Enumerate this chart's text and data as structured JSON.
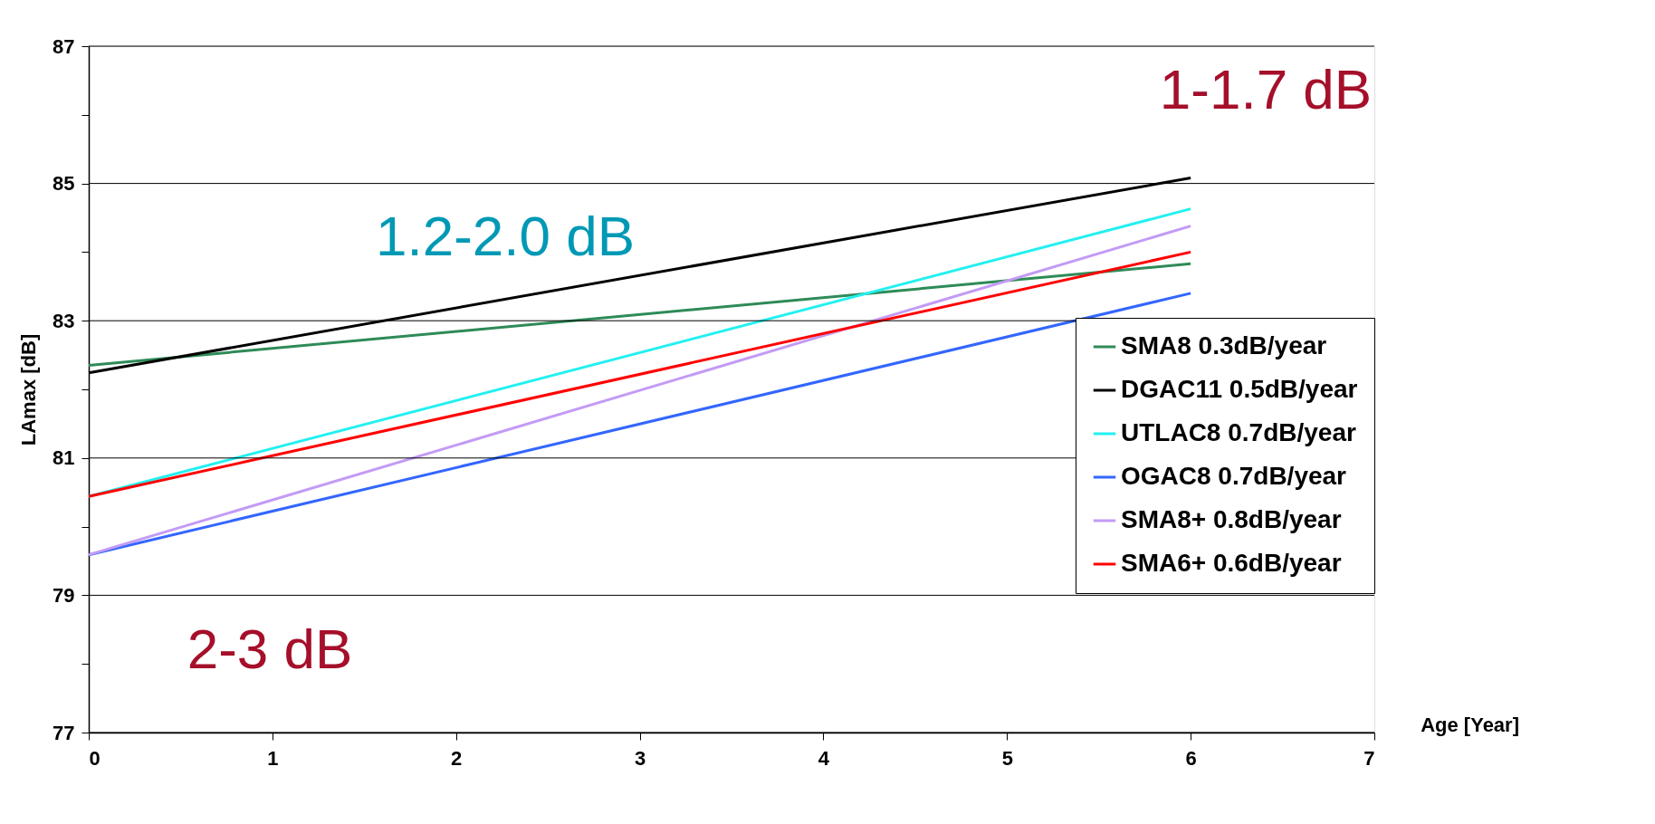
{
  "chart_data": {
    "type": "line",
    "xlabel": "Age [Year]",
    "ylabel": "LAmax [dB]",
    "x": [
      0,
      6
    ],
    "series": [
      {
        "name": "SMA8   0.3dB/year",
        "color": "#2e8b57",
        "values": [
          82.35,
          83.83
        ]
      },
      {
        "name": "DGAC11 0.5dB/year",
        "color": "#000000",
        "values": [
          82.24,
          85.08
        ]
      },
      {
        "name": "UTLAC8 0.7dB/year",
        "color": "#22f0f0",
        "values": [
          80.44,
          84.63
        ]
      },
      {
        "name": "OGAC8  0.7dB/year",
        "color": "#3366ff",
        "values": [
          79.59,
          83.4
        ]
      },
      {
        "name": "SMA8+  0.8dB/year",
        "color": "#c39bf5",
        "values": [
          79.59,
          84.38
        ]
      },
      {
        "name": "SMA6+  0.6dB/year",
        "color": "#ff0000",
        "values": [
          80.44,
          84.0
        ]
      }
    ],
    "xlim": [
      0,
      7
    ],
    "xticks": [
      0,
      1,
      2,
      3,
      4,
      5,
      6,
      7
    ],
    "ylim": [
      77,
      87
    ],
    "yticks": [
      77,
      {
        "value": 78,
        "label": null
      },
      79,
      {
        "value": 80,
        "label": null
      },
      81,
      {
        "value": 82,
        "label": null
      },
      83,
      {
        "value": 84,
        "label": null
      },
      85,
      {
        "value": 86,
        "label": null
      },
      87
    ],
    "grid": "y",
    "legend": "bottom right",
    "marker": "none",
    "line_style": "solid",
    "annotations": [
      "1-1.7 dB",
      "1.2-2.0 dB",
      "2-3 dB"
    ]
  }
}
